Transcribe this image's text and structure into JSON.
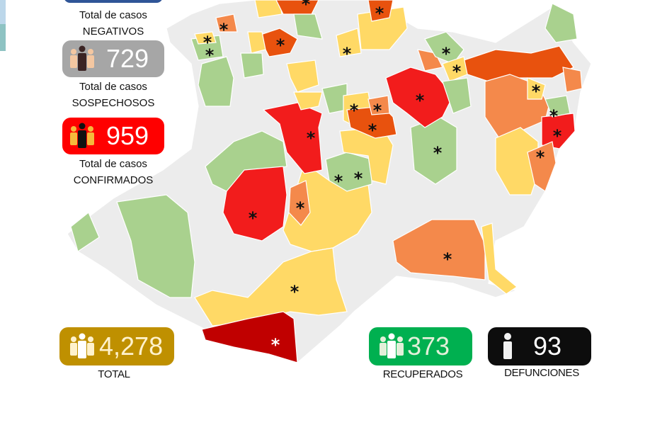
{
  "negativos": {
    "line1": "Total de casos",
    "line2": "NEGATIVOS"
  },
  "sospechosos": {
    "value": "729",
    "line1": "Total de casos",
    "line2": "SOSPECHOSOS",
    "icon": "people-group-icon",
    "color": "#a6a6a6"
  },
  "confirmados": {
    "value": "959",
    "line1": "Total de casos",
    "line2": "CONFIRMADOS",
    "icon": "people-group-icon",
    "color": "#ff0000"
  },
  "total": {
    "value": "4,278",
    "label": "TOTAL",
    "icon": "people-group-icon",
    "color": "#bf9000"
  },
  "recuperados": {
    "value": "373",
    "label": "RECUPERADOS",
    "icon": "people-group-icon",
    "color": "#00b050"
  },
  "defunciones": {
    "value": "93",
    "label": "DEFUNCIONES",
    "icon": "person-icon",
    "color": "#0d0d0d"
  },
  "map": {
    "marker_symbol": "*",
    "colors": {
      "none": "#ececec",
      "low": "#a9d18e",
      "medium": "#ffd966",
      "high": "#f4894b",
      "very_high": "#e8520e",
      "severe": "#f21c1c",
      "critical": "#c00000"
    }
  }
}
